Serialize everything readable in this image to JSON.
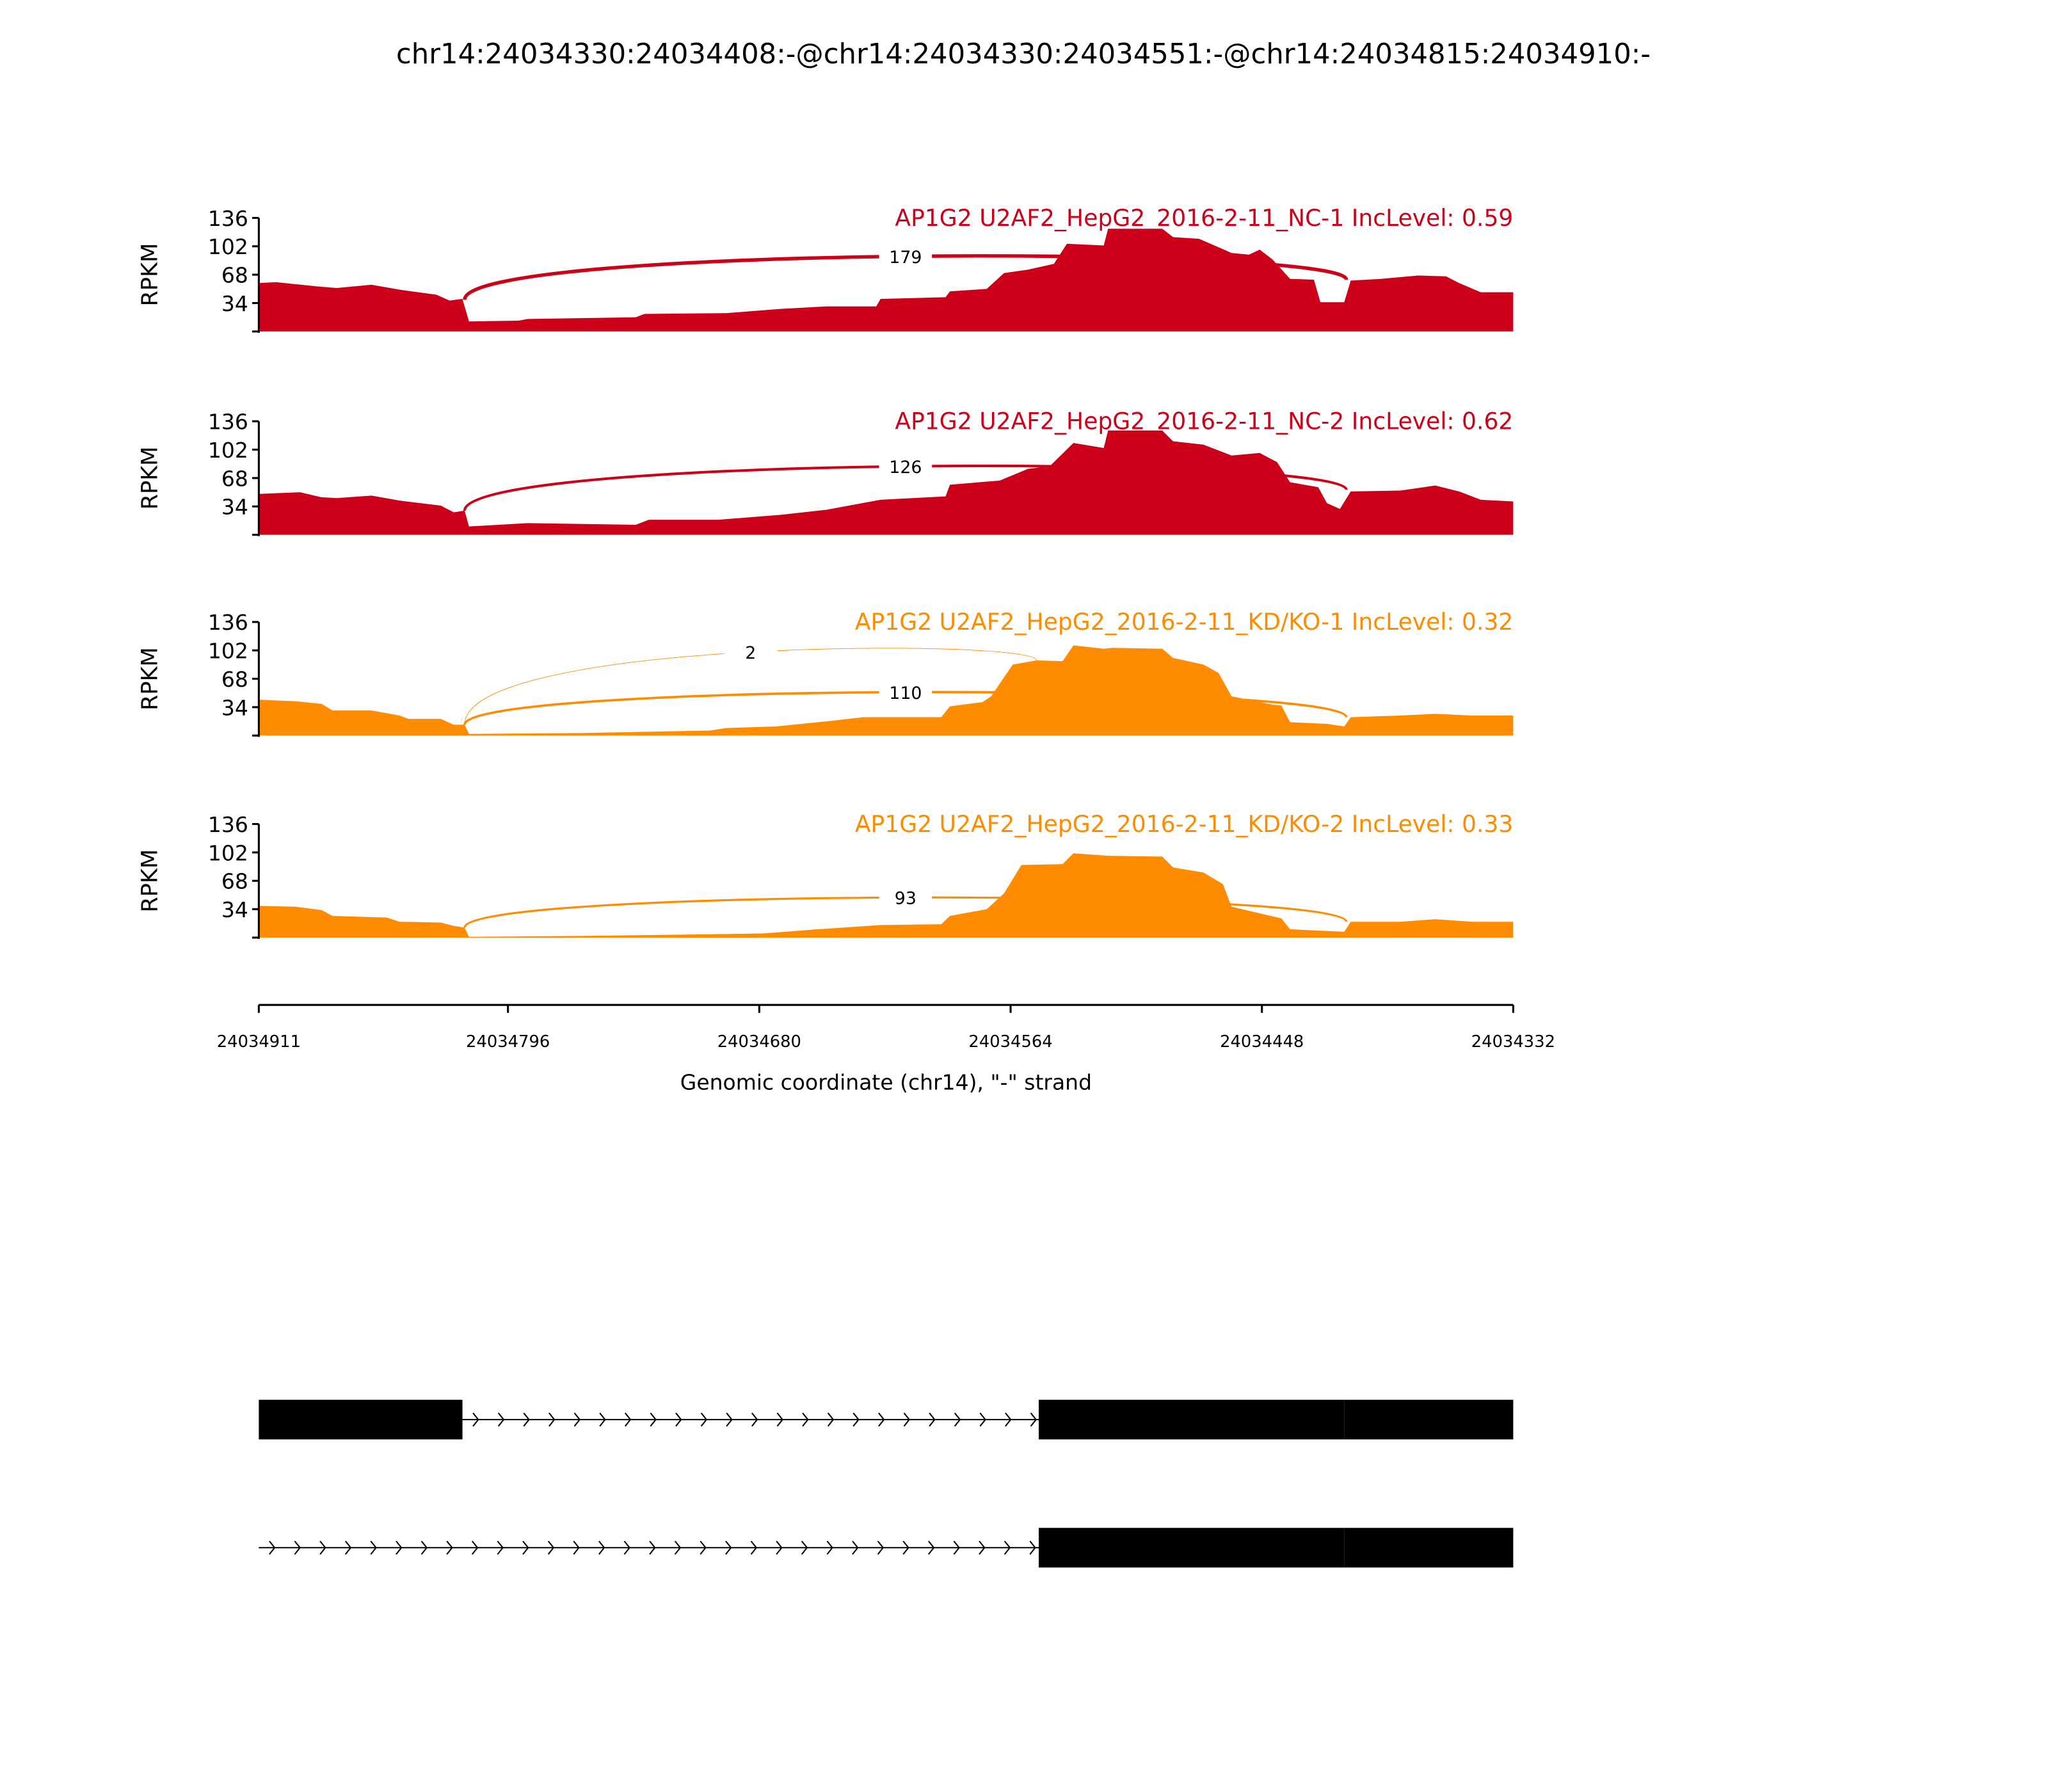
{
  "chart_data": {
    "type": "area",
    "title": "chr14:24034330:24034408:-@chr14:24034330:24034551:-@chr14:24034815:24034910:-",
    "xlabel": "Genomic coordinate (chr14), \"-\" strand",
    "ylabel": "RPKM",
    "xlim": [
      24034911,
      24034332
    ],
    "x_ticks": [
      "24034911",
      "24034796",
      "24034680",
      "24034564",
      "24034448",
      "24034332"
    ],
    "x_tick_values": [
      24034911,
      24034796,
      24034680,
      24034564,
      24034448,
      24034332
    ],
    "ylim": [
      0,
      136
    ],
    "y_ticks": [
      "34",
      "68",
      "102",
      "136"
    ],
    "y_tick_values": [
      34,
      68,
      102,
      136
    ],
    "tracks": [
      {
        "label": "AP1G2 U2AF2_HepG2_2016-2-11_NC-1 IncLevel: 0.59",
        "color": "#CC0018",
        "coverage": [
          [
            24034911,
            58
          ],
          [
            24034903,
            59
          ],
          [
            24034884,
            54
          ],
          [
            24034875,
            52
          ],
          [
            24034859,
            56
          ],
          [
            24034846,
            50
          ],
          [
            24034829,
            44
          ],
          [
            24034823,
            37
          ],
          [
            24034817,
            39
          ],
          [
            24034814,
            12
          ],
          [
            24034791,
            13
          ],
          [
            24034787,
            15
          ],
          [
            24034737,
            17
          ],
          [
            24034733,
            21
          ],
          [
            24034695,
            22
          ],
          [
            24034670,
            27
          ],
          [
            24034649,
            30
          ],
          [
            24034626,
            30
          ],
          [
            24034624,
            39
          ],
          [
            24034594,
            41
          ],
          [
            24034592,
            48
          ],
          [
            24034575,
            51
          ],
          [
            24034567,
            70
          ],
          [
            24034556,
            74
          ],
          [
            24034544,
            81
          ],
          [
            24034538,
            105
          ],
          [
            24034521,
            103
          ],
          [
            24034519,
            123
          ],
          [
            24034494,
            123
          ],
          [
            24034489,
            113
          ],
          [
            24034477,
            111
          ],
          [
            24034462,
            94
          ],
          [
            24034454,
            92
          ],
          [
            24034449,
            98
          ],
          [
            24034443,
            86
          ],
          [
            24034435,
            63
          ],
          [
            24034424,
            62
          ],
          [
            24034421,
            35
          ],
          [
            24034410,
            35
          ],
          [
            24034407,
            61
          ],
          [
            24034393,
            63
          ],
          [
            24034376,
            67
          ],
          [
            24034363,
            66
          ],
          [
            24034357,
            58
          ],
          [
            24034347,
            47
          ],
          [
            24034332,
            47
          ]
        ],
        "junctions": [
          {
            "start": 24034816,
            "end": 24034409,
            "count": "179",
            "y_start": 38,
            "y_end": 62,
            "peak": 90
          }
        ]
      },
      {
        "label": "AP1G2 U2AF2_HepG2_2016-2-11_NC-2 IncLevel: 0.62",
        "color": "#CC0018",
        "coverage": [
          [
            24034911,
            49
          ],
          [
            24034892,
            51
          ],
          [
            24034882,
            45
          ],
          [
            24034875,
            44
          ],
          [
            24034859,
            47
          ],
          [
            24034846,
            41
          ],
          [
            24034827,
            35
          ],
          [
            24034821,
            27
          ],
          [
            24034816,
            29
          ],
          [
            24034814,
            10
          ],
          [
            24034787,
            14
          ],
          [
            24034737,
            12
          ],
          [
            24034731,
            18
          ],
          [
            24034699,
            18
          ],
          [
            24034670,
            24
          ],
          [
            24034649,
            30
          ],
          [
            24034624,
            42
          ],
          [
            24034594,
            46
          ],
          [
            24034592,
            60
          ],
          [
            24034569,
            65
          ],
          [
            24034556,
            79
          ],
          [
            24034546,
            82
          ],
          [
            24034535,
            110
          ],
          [
            24034521,
            104
          ],
          [
            24034519,
            125
          ],
          [
            24034494,
            125
          ],
          [
            24034489,
            112
          ],
          [
            24034475,
            108
          ],
          [
            24034462,
            95
          ],
          [
            24034449,
            98
          ],
          [
            24034441,
            87
          ],
          [
            24034435,
            63
          ],
          [
            24034422,
            57
          ],
          [
            24034418,
            38
          ],
          [
            24034412,
            31
          ],
          [
            24034407,
            52
          ],
          [
            24034384,
            53
          ],
          [
            24034368,
            59
          ],
          [
            24034357,
            52
          ],
          [
            24034347,
            42
          ],
          [
            24034332,
            40
          ]
        ],
        "junctions": [
          {
            "start": 24034816,
            "end": 24034409,
            "count": "126",
            "y_start": 29,
            "y_end": 54,
            "peak": 82
          }
        ]
      },
      {
        "label": "AP1G2 U2AF2_HepG2_2016-2-11_KD/KO-1 IncLevel: 0.32",
        "color": "#FF8C00",
        "coverage": [
          [
            24034911,
            43
          ],
          [
            24034894,
            41
          ],
          [
            24034882,
            38
          ],
          [
            24034877,
            30
          ],
          [
            24034859,
            30
          ],
          [
            24034846,
            24
          ],
          [
            24034842,
            20
          ],
          [
            24034827,
            20
          ],
          [
            24034821,
            13
          ],
          [
            24034816,
            13
          ],
          [
            24034814,
            2
          ],
          [
            24034762,
            3
          ],
          [
            24034703,
            6
          ],
          [
            24034695,
            9
          ],
          [
            24034672,
            11
          ],
          [
            24034649,
            17
          ],
          [
            24034632,
            22
          ],
          [
            24034596,
            22
          ],
          [
            24034592,
            35
          ],
          [
            24034577,
            40
          ],
          [
            24034573,
            47
          ],
          [
            24034563,
            85
          ],
          [
            24034552,
            90
          ],
          [
            24034540,
            89
          ],
          [
            24034535,
            108
          ],
          [
            24034521,
            104
          ],
          [
            24034517,
            105
          ],
          [
            24034494,
            104
          ],
          [
            24034489,
            93
          ],
          [
            24034475,
            85
          ],
          [
            24034468,
            75
          ],
          [
            24034462,
            47
          ],
          [
            24034443,
            37
          ],
          [
            24034439,
            36
          ],
          [
            24034435,
            16
          ],
          [
            24034418,
            14
          ],
          [
            24034410,
            11
          ],
          [
            24034407,
            22
          ],
          [
            24034384,
            24
          ],
          [
            24034368,
            26
          ],
          [
            24034351,
            24
          ],
          [
            24034332,
            24
          ]
        ],
        "junctions": [
          {
            "start": 24034816,
            "end": 24034552,
            "count": "2",
            "y_start": 13,
            "y_end": 90,
            "peak": 100
          },
          {
            "start": 24034816,
            "end": 24034409,
            "count": "110",
            "y_start": 13,
            "y_end": 22,
            "peak": 52
          }
        ]
      },
      {
        "label": "AP1G2 U2AF2_HepG2_2016-2-11_KD/KO-2 IncLevel: 0.33",
        "color": "#FF8C00",
        "coverage": [
          [
            24034911,
            38
          ],
          [
            24034894,
            37
          ],
          [
            24034882,
            33
          ],
          [
            24034877,
            26
          ],
          [
            24034852,
            24
          ],
          [
            24034846,
            19
          ],
          [
            24034827,
            18
          ],
          [
            24034821,
            14
          ],
          [
            24034816,
            12
          ],
          [
            24034814,
            1
          ],
          [
            24034762,
            2
          ],
          [
            24034703,
            4
          ],
          [
            24034678,
            5
          ],
          [
            24034653,
            10
          ],
          [
            24034624,
            15
          ],
          [
            24034596,
            16
          ],
          [
            24034592,
            26
          ],
          [
            24034575,
            34
          ],
          [
            24034567,
            53
          ],
          [
            24034559,
            87
          ],
          [
            24034540,
            88
          ],
          [
            24034535,
            101
          ],
          [
            24034519,
            98
          ],
          [
            24034494,
            97
          ],
          [
            24034489,
            84
          ],
          [
            24034475,
            78
          ],
          [
            24034466,
            64
          ],
          [
            24034462,
            37
          ],
          [
            24034439,
            23
          ],
          [
            24034435,
            10
          ],
          [
            24034410,
            7
          ],
          [
            24034407,
            19
          ],
          [
            24034384,
            19
          ],
          [
            24034368,
            22
          ],
          [
            24034351,
            19
          ],
          [
            24034332,
            19
          ]
        ],
        "junctions": [
          {
            "start": 24034816,
            "end": 24034409,
            "count": "93",
            "y_start": 12,
            "y_end": 19,
            "peak": 48
          }
        ]
      }
    ],
    "gene_models": [
      {
        "exons": [
          [
            24034911,
            24034817
          ],
          [
            24034551,
            24034410
          ],
          [
            24034410,
            24034332
          ]
        ],
        "intron": [
          24034817,
          24034551
        ]
      },
      {
        "exons": [
          [
            24034551,
            24034410
          ],
          [
            24034410,
            24034332
          ]
        ],
        "intron": [
          24034911,
          24034551
        ]
      }
    ]
  }
}
